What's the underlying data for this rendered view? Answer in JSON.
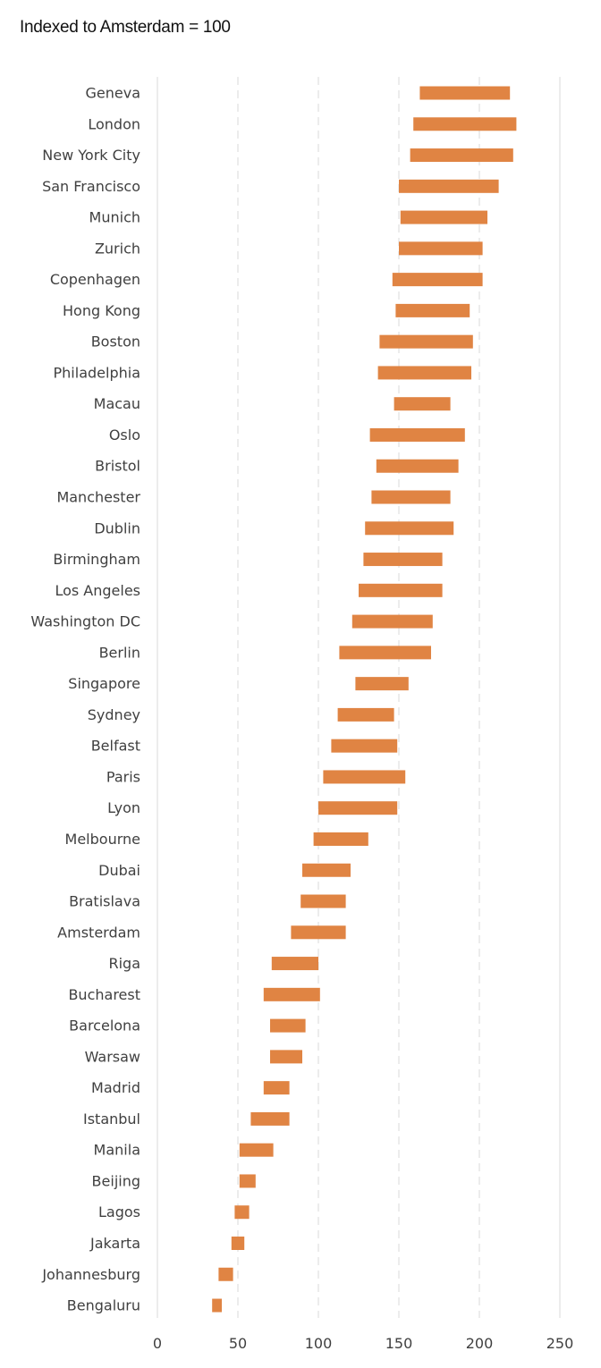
{
  "chart_data": {
    "type": "bar",
    "subtype": "floating-range-horizontal",
    "title": "Indexed to Amsterdam = 100",
    "xlabel": "",
    "ylabel": "",
    "xlim": [
      0,
      250
    ],
    "xticks": [
      0,
      50,
      100,
      150,
      200,
      250
    ],
    "grid": "vertical-dashed",
    "bar_color": "#E08443",
    "grid_color": "#D9D9D9",
    "text_color": "#404040",
    "series": [
      {
        "categories": [
          "Geneva",
          "London",
          "New York City",
          "San Francisco",
          "Munich",
          "Zurich",
          "Copenhagen",
          "Hong Kong",
          "Boston",
          "Philadelphia",
          "Macau",
          "Oslo",
          "Bristol",
          "Manchester",
          "Dublin",
          "Birmingham",
          "Los Angeles",
          "Washington DC",
          "Berlin",
          "Singapore",
          "Sydney",
          "Belfast",
          "Paris",
          "Lyon",
          "Melbourne",
          "Dubai",
          "Bratislava",
          "Amsterdam",
          "Riga",
          "Bucharest",
          "Barcelona",
          "Warsaw",
          "Madrid",
          "Istanbul",
          "Manila",
          "Beijing",
          "Lagos",
          "Jakarta",
          "Johannesburg",
          "Bengaluru"
        ],
        "low": [
          163,
          159,
          157,
          150,
          151,
          150,
          146,
          148,
          138,
          137,
          147,
          132,
          136,
          133,
          129,
          128,
          125,
          121,
          113,
          123,
          112,
          108,
          103,
          100,
          97,
          90,
          89,
          83,
          71,
          66,
          70,
          70,
          66,
          58,
          51,
          51,
          48,
          46,
          38,
          34
        ],
        "high": [
          219,
          223,
          221,
          212,
          205,
          202,
          202,
          194,
          196,
          195,
          182,
          191,
          187,
          182,
          184,
          177,
          177,
          171,
          170,
          156,
          147,
          149,
          154,
          149,
          131,
          120,
          117,
          117,
          100,
          101,
          92,
          90,
          82,
          82,
          72,
          61,
          57,
          54,
          47,
          40
        ]
      }
    ]
  }
}
